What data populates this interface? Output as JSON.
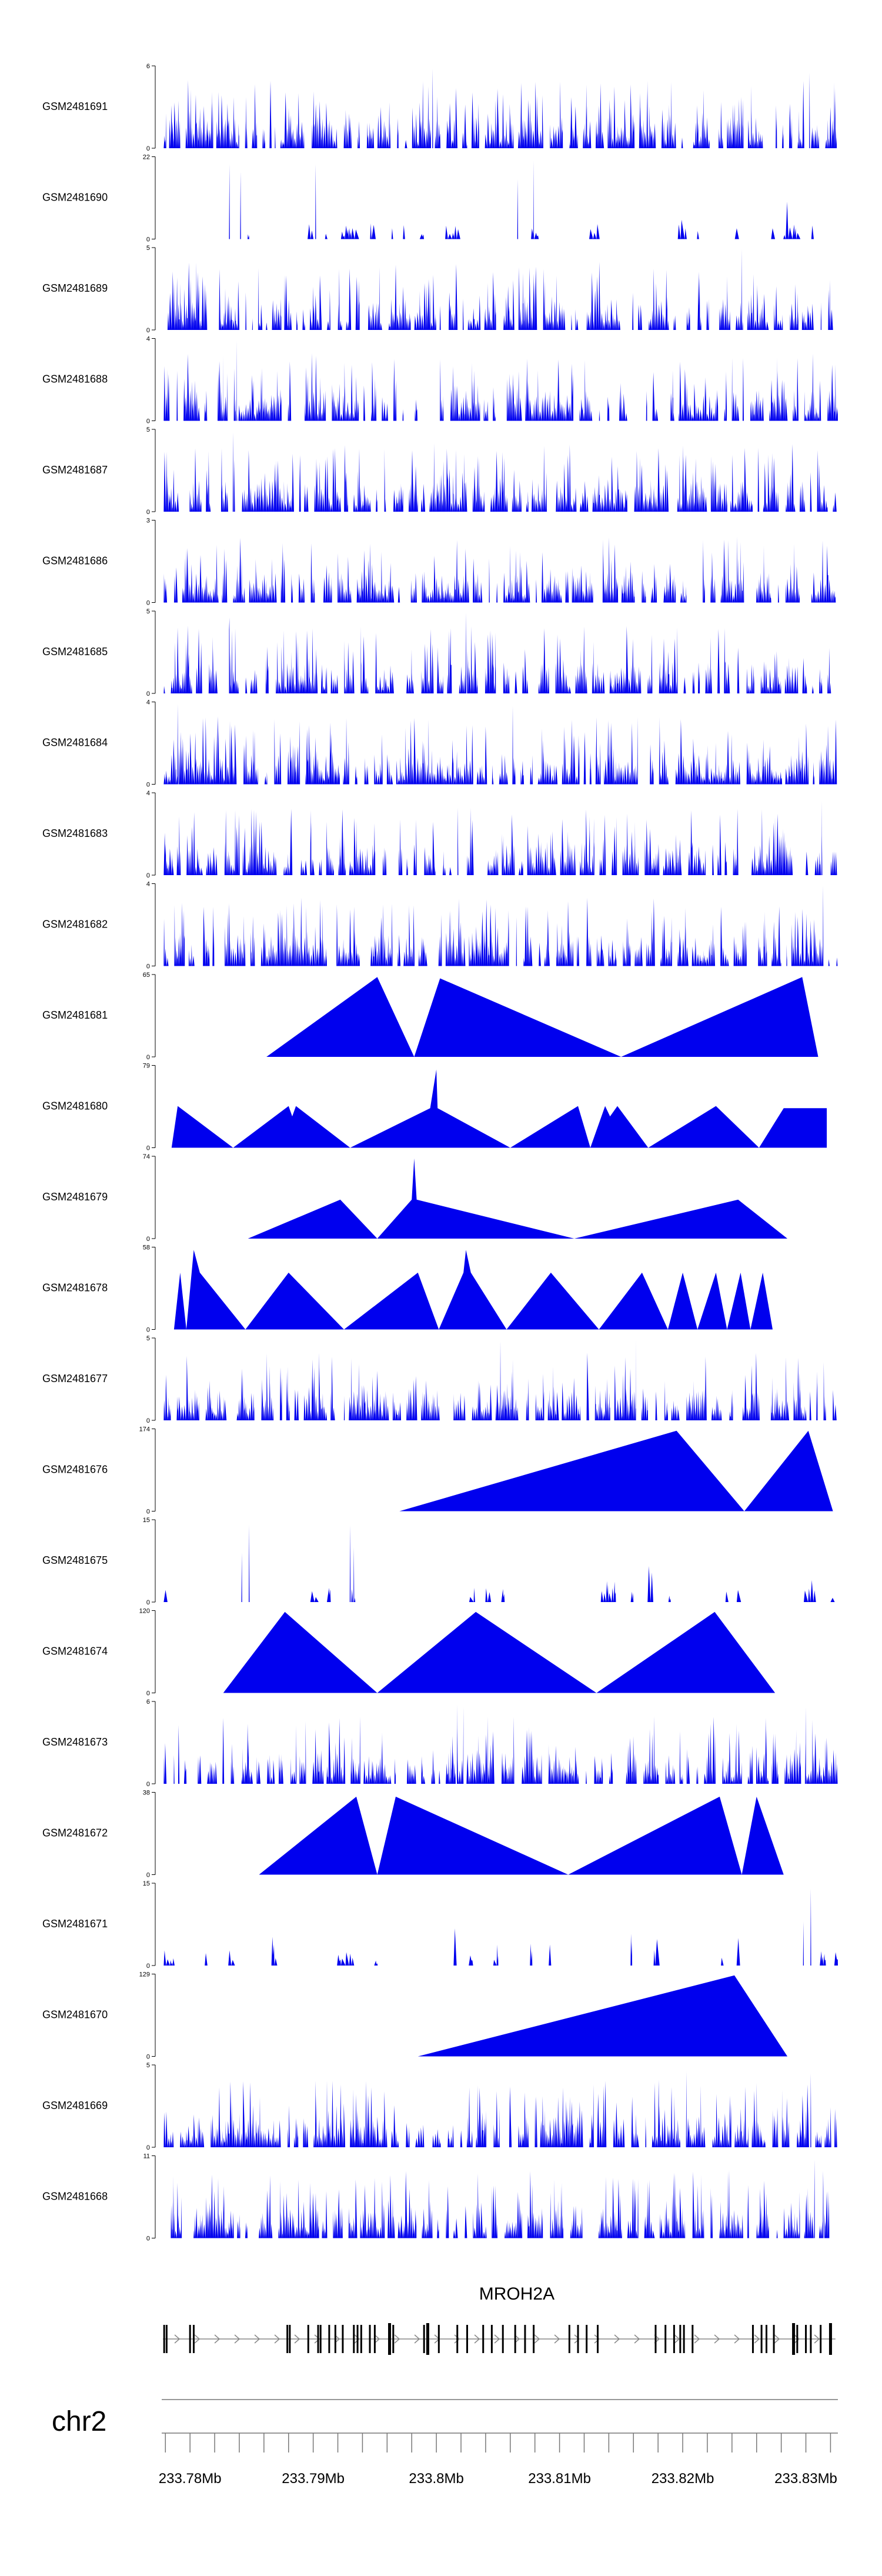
{
  "colors": {
    "signal": "#0000ee",
    "axis": "#000000",
    "gene": "#000000",
    "strand": "#888888",
    "ideogram": "#777777"
  },
  "chart_data": {
    "type": "area",
    "x_unit": "Mb",
    "xlim": [
      233.7777,
      233.8326
    ],
    "tracks": [
      {
        "name": "GSM2481691",
        "ymax": 6,
        "style": "dense",
        "seed": 11,
        "peaks": [
          [
            233.7997,
            5.8
          ],
          [
            233.8303,
            5.5
          ]
        ]
      },
      {
        "name": "GSM2481690",
        "ymax": 22,
        "style": "sparse",
        "seed": 12,
        "peaks": [
          [
            233.7832,
            20
          ],
          [
            233.7841,
            18
          ],
          [
            233.7902,
            20
          ],
          [
            233.8079,
            21
          ],
          [
            233.8066,
            16
          ]
        ]
      },
      {
        "name": "GSM2481689",
        "ymax": 5,
        "style": "dense",
        "seed": 13,
        "peaks": [
          [
            233.8248,
            4.9
          ]
        ]
      },
      {
        "name": "GSM2481688",
        "ymax": 4,
        "style": "dense",
        "seed": 14,
        "peaks": [
          [
            233.7838,
            3.9
          ],
          [
            233.7827,
            3.2
          ]
        ]
      },
      {
        "name": "GSM2481687",
        "ymax": 5,
        "style": "dense",
        "seed": 15,
        "peaks": [
          [
            233.7835,
            4.8
          ]
        ]
      },
      {
        "name": "GSM2481686",
        "ymax": 3,
        "style": "dense",
        "seed": 16,
        "peaks": []
      },
      {
        "name": "GSM2481685",
        "ymax": 5,
        "style": "dense",
        "seed": 17,
        "peaks": [
          [
            233.7832,
            4.6
          ],
          [
            233.8024,
            4.9
          ]
        ]
      },
      {
        "name": "GSM2481684",
        "ymax": 4,
        "style": "dense",
        "seed": 18,
        "peaks": [
          [
            233.779,
            3.9
          ],
          [
            233.8062,
            3.8
          ]
        ]
      },
      {
        "name": "GSM2481683",
        "ymax": 4,
        "style": "dense",
        "seed": 19,
        "peaks": [
          [
            233.8313,
            3.6
          ]
        ]
      },
      {
        "name": "GSM2481682",
        "ymax": 4,
        "style": "dense",
        "seed": 20,
        "peaks": [
          [
            233.8314,
            3.9
          ]
        ]
      },
      {
        "name": "GSM2481681",
        "ymax": 65,
        "style": "tri",
        "points": [
          [
            233.7862,
            0
          ],
          [
            233.7952,
            63
          ],
          [
            233.7982,
            0
          ],
          [
            233.8003,
            62
          ],
          [
            233.815,
            0
          ],
          [
            233.8297,
            63
          ],
          [
            233.831,
            0
          ]
        ]
      },
      {
        "name": "GSM2481680",
        "ymax": 79,
        "style": "tri",
        "points": [
          [
            233.7785,
            0
          ],
          [
            233.779,
            40
          ],
          [
            233.7835,
            0
          ],
          [
            233.788,
            40
          ],
          [
            233.7883,
            30
          ],
          [
            233.7886,
            40
          ],
          [
            233.793,
            0
          ],
          [
            233.7995,
            38
          ],
          [
            233.8,
            75
          ],
          [
            233.8001,
            38
          ],
          [
            233.806,
            0
          ],
          [
            233.8115,
            40
          ],
          [
            233.8125,
            0
          ],
          [
            233.8137,
            40
          ],
          [
            233.8141,
            30
          ],
          [
            233.8147,
            40
          ],
          [
            233.8172,
            0
          ],
          [
            233.8227,
            40
          ],
          [
            233.8262,
            0
          ],
          [
            233.8282,
            38
          ],
          [
            233.8317,
            38
          ]
        ]
      },
      {
        "name": "GSM2481679",
        "ymax": 74,
        "style": "tri",
        "points": [
          [
            233.7847,
            0
          ],
          [
            233.7922,
            35
          ],
          [
            233.7952,
            0
          ],
          [
            233.798,
            35
          ],
          [
            233.7982,
            72
          ],
          [
            233.7984,
            35
          ],
          [
            233.8112,
            0
          ],
          [
            233.8245,
            35
          ],
          [
            233.8285,
            0
          ]
        ]
      },
      {
        "name": "GSM2481678",
        "ymax": 58,
        "style": "tri",
        "points": [
          [
            233.7787,
            0
          ],
          [
            233.7792,
            40
          ],
          [
            233.7797,
            0
          ],
          [
            233.7803,
            56
          ],
          [
            233.7808,
            40
          ],
          [
            233.7845,
            0
          ],
          [
            233.788,
            40
          ],
          [
            233.7925,
            0
          ],
          [
            233.7985,
            40
          ],
          [
            233.8002,
            0
          ],
          [
            233.8022,
            40
          ],
          [
            233.8024,
            56
          ],
          [
            233.8028,
            40
          ],
          [
            233.8057,
            0
          ],
          [
            233.8093,
            40
          ],
          [
            233.8132,
            0
          ],
          [
            233.8167,
            40
          ],
          [
            233.8188,
            0
          ],
          [
            233.82,
            40
          ],
          [
            233.8212,
            0
          ],
          [
            233.8227,
            40
          ],
          [
            233.8236,
            0
          ],
          [
            233.8247,
            40
          ],
          [
            233.8255,
            0
          ],
          [
            233.8265,
            40
          ],
          [
            233.8273,
            0
          ]
        ]
      },
      {
        "name": "GSM2481677",
        "ymax": 5,
        "style": "dense",
        "seed": 21,
        "peaks": [
          [
            233.8052,
            4.8
          ],
          [
            233.8162,
            4.9
          ]
        ]
      },
      {
        "name": "GSM2481676",
        "ymax": 174,
        "style": "tri",
        "points": [
          [
            233.797,
            0
          ],
          [
            233.8195,
            170
          ],
          [
            233.825,
            0
          ],
          [
            233.8302,
            170
          ],
          [
            233.8322,
            0
          ]
        ]
      },
      {
        "name": "GSM2481675",
        "ymax": 15,
        "style": "sparse",
        "seed": 22,
        "peaks": [
          [
            233.7848,
            14
          ],
          [
            233.7842,
            9
          ],
          [
            233.793,
            14
          ],
          [
            233.7933,
            10
          ]
        ]
      },
      {
        "name": "GSM2481674",
        "ymax": 120,
        "style": "tri",
        "points": [
          [
            233.7827,
            0
          ],
          [
            233.7877,
            118
          ],
          [
            233.7952,
            0
          ],
          [
            233.8032,
            118
          ],
          [
            233.813,
            0
          ],
          [
            233.8226,
            118
          ],
          [
            233.8275,
            0
          ]
        ]
      },
      {
        "name": "GSM2481673",
        "ymax": 6,
        "style": "dense",
        "seed": 23,
        "peaks": [
          [
            233.8017,
            5.8
          ],
          [
            233.8022,
            5.6
          ],
          [
            233.83,
            5.6
          ]
        ]
      },
      {
        "name": "GSM2481672",
        "ymax": 38,
        "style": "tri",
        "points": [
          [
            233.7856,
            0
          ],
          [
            233.7935,
            36
          ],
          [
            233.7952,
            0
          ],
          [
            233.7967,
            36
          ],
          [
            233.8107,
            0
          ],
          [
            233.823,
            36
          ],
          [
            233.8248,
            0
          ],
          [
            233.826,
            36
          ],
          [
            233.8282,
            0
          ]
        ]
      },
      {
        "name": "GSM2481671",
        "ymax": 15,
        "style": "sparse",
        "seed": 24,
        "peaks": [
          [
            233.8304,
            14
          ],
          [
            233.8298,
            8
          ]
        ]
      },
      {
        "name": "GSM2481670",
        "ymax": 129,
        "style": "tri",
        "points": [
          [
            233.7985,
            0
          ],
          [
            233.8242,
            127
          ],
          [
            233.8285,
            0
          ]
        ]
      },
      {
        "name": "GSM2481669",
        "ymax": 5,
        "style": "dense",
        "seed": 25,
        "peaks": [
          [
            233.8203,
            4.6
          ],
          [
            233.8304,
            4.5
          ]
        ]
      },
      {
        "name": "GSM2481668",
        "ymax": 11,
        "style": "dense",
        "seed": 26,
        "peaks": [
          [
            233.8307,
            10.5
          ],
          [
            233.8314,
            9
          ]
        ]
      }
    ],
    "gene": {
      "name": "MROH2A",
      "strand": "+",
      "start": 233.7778,
      "end": 233.8324,
      "exons": [
        233.7779,
        233.7781,
        233.78,
        233.7803,
        233.7879,
        233.7881,
        233.7896,
        233.7904,
        233.7906,
        233.7913,
        233.7918,
        233.7924,
        233.7933,
        233.7936,
        233.7939,
        233.7946,
        233.795,
        233.7962,
        233.7965,
        233.799,
        233.7993,
        233.8002,
        233.8017,
        233.8025,
        233.8038,
        233.8045,
        233.8054,
        233.8064,
        233.8072,
        233.8079,
        233.8108,
        233.8115,
        233.8122,
        233.8131,
        233.8178,
        233.8186,
        233.8193,
        233.8198,
        233.8201,
        233.8208,
        233.8257,
        233.8264,
        233.8268,
        233.8274,
        233.829,
        233.8293,
        233.83,
        233.8304,
        233.8312,
        233.832
      ],
      "thick_exons": [
        233.7962,
        233.7993,
        233.829,
        233.832
      ]
    },
    "chromosome": "chr2",
    "axis_ticks": [
      {
        "value": 233.78,
        "label": "233.78Mb"
      },
      {
        "value": 233.79,
        "label": "233.79Mb"
      },
      {
        "value": 233.8,
        "label": "233.8Mb"
      },
      {
        "value": 233.81,
        "label": "233.81Mb"
      },
      {
        "value": 233.82,
        "label": "233.82Mb"
      },
      {
        "value": 233.83,
        "label": "233.83Mb"
      }
    ],
    "minor_tick_step": 0.002
  }
}
